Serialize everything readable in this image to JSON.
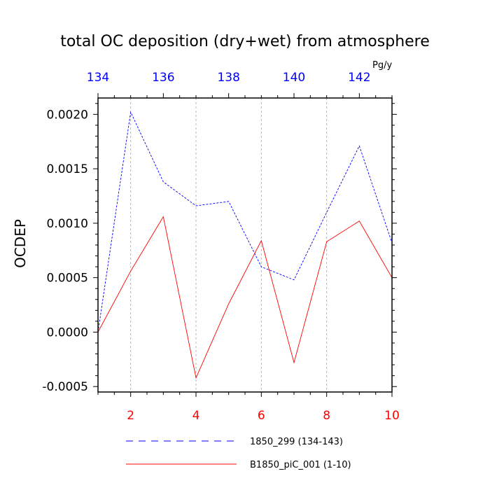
{
  "chart_data": {
    "type": "line",
    "title": "total OC deposition (dry+wet) from atmosphere",
    "ylabel": "OCDEP",
    "units": "Pg/y",
    "ylim": [
      -0.00055,
      0.00215
    ],
    "yticks": [
      "0.0020",
      "0.0015",
      "0.0010",
      "0.0005",
      "0.0000",
      "-0.0005"
    ],
    "ytick_values": [
      0.002,
      0.0015,
      0.001,
      0.0005,
      0.0,
      -0.0005
    ],
    "bottom_axis": {
      "range": [
        1,
        10
      ],
      "ticks": [
        2,
        4,
        6,
        8,
        10
      ],
      "labels": [
        "2",
        "4",
        "6",
        "8",
        "10"
      ],
      "color": "#ff0000"
    },
    "top_axis": {
      "range": [
        134,
        143
      ],
      "ticks": [
        134,
        136,
        138,
        140,
        142
      ],
      "labels": [
        "134",
        "136",
        "138",
        "140",
        "142"
      ],
      "color": "#0000ff"
    },
    "grid": "vertical-dashed",
    "legend_position": "bottom",
    "series": [
      {
        "name": "1850_299 (134-143)",
        "axis": "top",
        "style": "dashed",
        "color": "#0000ff",
        "x": [
          134,
          135,
          136,
          137,
          138,
          139,
          140,
          141,
          142,
          143
        ],
        "values": [
          0.0,
          0.00202,
          0.00138,
          0.00116,
          0.0012,
          0.0006,
          0.00048,
          0.0011,
          0.00171,
          0.00082
        ]
      },
      {
        "name": "B1850_piC_001 (1-10)",
        "axis": "bottom",
        "style": "solid",
        "color": "#ff0000",
        "x": [
          1,
          2,
          3,
          4,
          5,
          6,
          7,
          8,
          9,
          10
        ],
        "values": [
          0.0,
          0.00056,
          0.00106,
          -0.00042,
          0.00026,
          0.00084,
          -0.00028,
          0.00083,
          0.00102,
          0.0005
        ]
      }
    ]
  }
}
